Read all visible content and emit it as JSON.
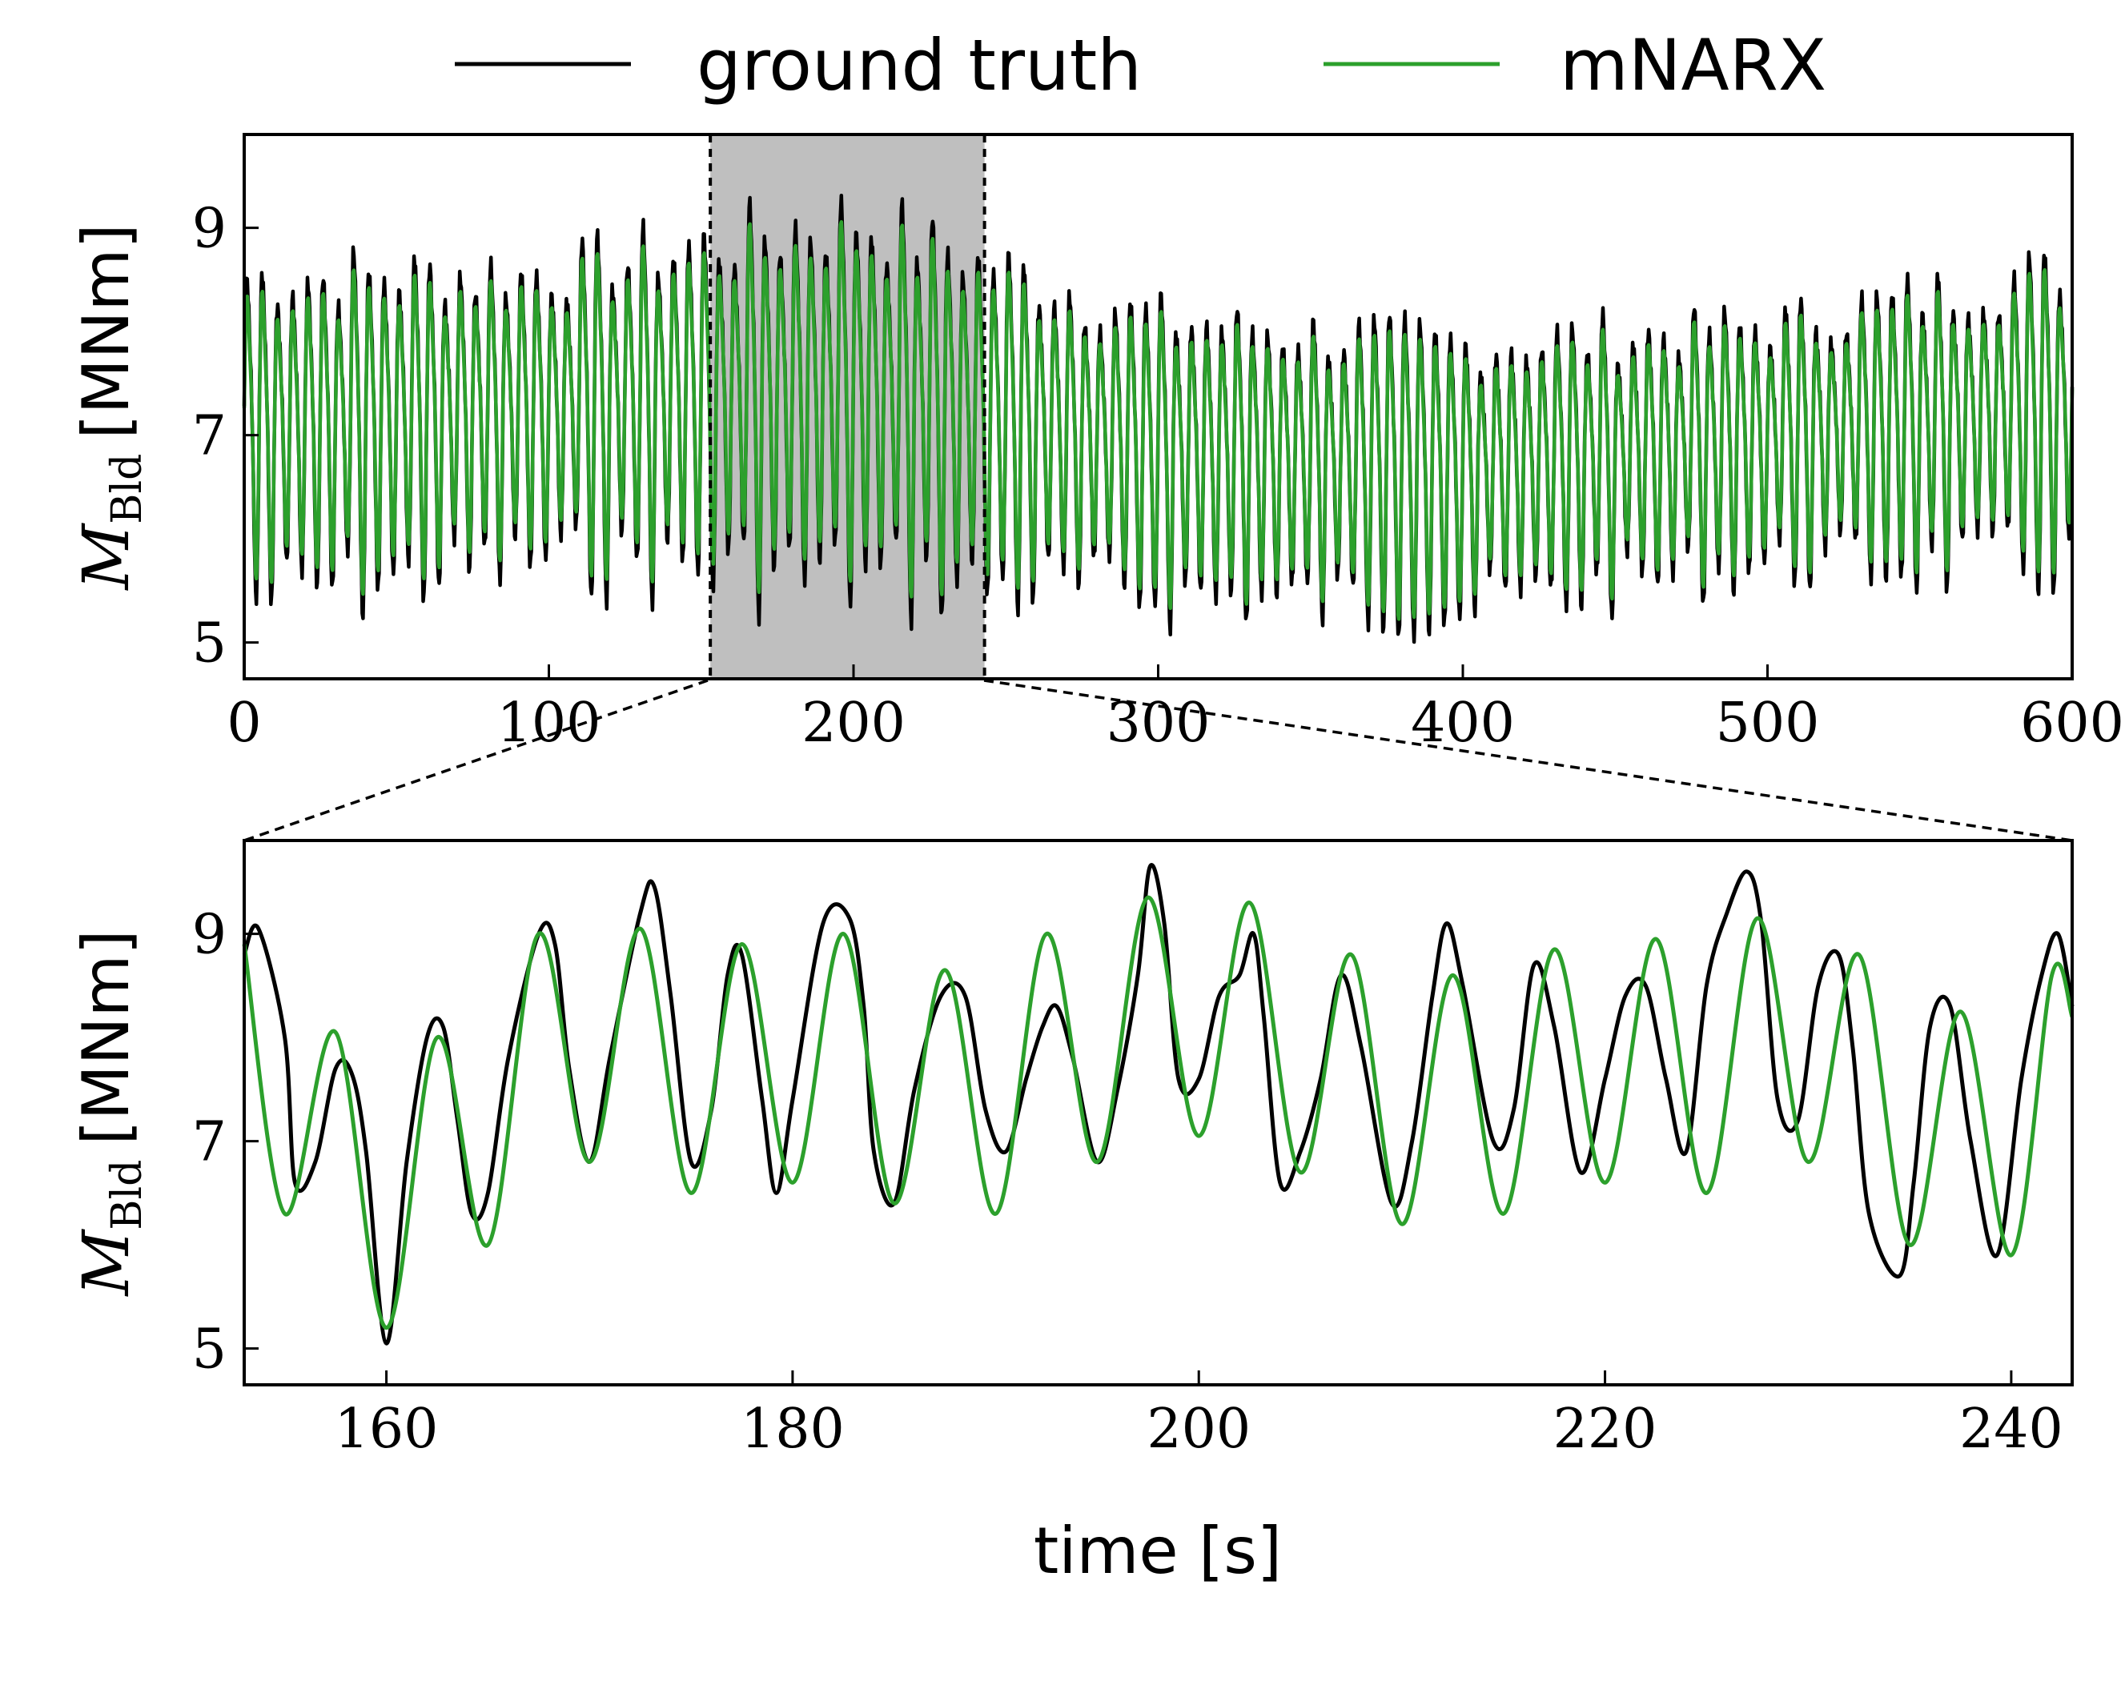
{
  "chart_data": [
    {
      "type": "line",
      "panel": "overview",
      "ylabel": {
        "symbol": "M",
        "subscript": "Bld",
        "unit": "[MNm]"
      },
      "xlabel": "",
      "xlim": [
        0,
        600
      ],
      "ylim": [
        4.65,
        9.9
      ],
      "xticks": [
        0,
        100,
        200,
        300,
        400,
        500,
        600
      ],
      "yticks": [
        5,
        7,
        9
      ],
      "highlight_region": [
        153,
        243
      ],
      "series": [
        {
          "name": "ground truth",
          "color": "#000000"
        },
        {
          "name": "mNARX",
          "color": "#2ca02c"
        }
      ],
      "signal_model": {
        "duration_s": [
          0,
          600
        ],
        "dominant_period_s": 5.0,
        "mean_trend": {
          "t": [
            0,
            100,
            200,
            300,
            400,
            500,
            600
          ],
          "y": [
            7.1,
            7.3,
            7.5,
            6.9,
            6.7,
            7.0,
            7.3
          ]
        },
        "amplitude_trend": {
          "t": [
            0,
            100,
            200,
            300,
            400,
            500,
            600
          ],
          "y": [
            1.3,
            1.15,
            1.45,
            1.1,
            1.05,
            0.95,
            1.2
          ]
        }
      }
    },
    {
      "type": "line",
      "panel": "zoom",
      "ylabel": {
        "symbol": "M",
        "subscript": "Bld",
        "unit": "[MNm]"
      },
      "xlabel": "time [s]",
      "xlim": [
        153,
        243
      ],
      "ylim": [
        4.65,
        9.9
      ],
      "xticks": [
        160,
        180,
        200,
        220,
        240
      ],
      "yticks": [
        5,
        7,
        9
      ],
      "series": [
        {
          "name": "ground truth",
          "color": "#000000",
          "x": [
            153,
            153.7,
            155,
            155.5,
            156.5,
            157.5,
            158.3,
            159,
            160,
            161,
            162,
            162.8,
            163.5,
            164.2,
            165,
            166,
            167.5,
            168.3,
            169,
            170,
            171,
            172.5,
            173.2,
            174,
            175,
            176,
            176.8,
            177.5,
            178.5,
            179.2,
            180,
            181.5,
            182.8,
            183.5,
            184,
            185,
            186,
            187.3,
            188.5,
            189.5,
            190.5,
            191.5,
            192.3,
            193,
            193.8,
            195,
            196,
            197,
            197.6,
            198.3,
            199,
            200,
            201,
            202,
            202.7,
            203.2,
            204,
            205,
            206,
            207,
            208,
            209.5,
            210.5,
            211.5,
            212.2,
            213,
            214.5,
            215.5,
            216.5,
            217.5,
            218.8,
            220,
            221,
            222,
            223,
            224,
            225,
            226,
            227,
            227.7,
            228.5,
            229.5,
            230.5,
            231.5,
            232.2,
            233,
            234.5,
            235.2,
            236,
            237,
            238,
            239.3,
            240.5,
            241.5,
            242.3,
            243
          ],
          "y": [
            8.8,
            9.05,
            8.0,
            6.6,
            6.8,
            7.7,
            7.65,
            6.9,
            5.05,
            6.8,
            8.0,
            8.1,
            7.2,
            6.3,
            6.5,
            7.8,
            9.0,
            8.9,
            7.7,
            6.8,
            7.8,
            9.2,
            9.45,
            8.4,
            6.8,
            7.3,
            8.6,
            8.8,
            7.4,
            6.5,
            7.4,
            9.1,
            9.15,
            8.3,
            6.9,
            6.4,
            7.5,
            8.4,
            8.4,
            7.3,
            6.9,
            7.6,
            8.1,
            8.3,
            7.8,
            6.8,
            7.5,
            8.6,
            9.65,
            9.1,
            7.6,
            7.6,
            8.4,
            8.6,
            9.0,
            8.2,
            6.6,
            6.9,
            7.6,
            8.6,
            7.9,
            6.4,
            7.0,
            8.4,
            9.1,
            8.5,
            7.0,
            7.3,
            8.7,
            8.1,
            6.7,
            7.6,
            8.4,
            8.5,
            7.6,
            6.9,
            8.5,
            9.2,
            9.6,
            9.1,
            7.4,
            7.2,
            8.5,
            8.8,
            7.9,
            6.3,
            5.7,
            6.6,
            8.1,
            8.3,
            7.0,
            5.9,
            7.6,
            8.6,
            9.0,
            8.3
          ]
        },
        {
          "name": "mNARX",
          "color": "#2ca02c",
          "x": [
            153,
            155,
            157.5,
            160,
            162.5,
            165,
            167.5,
            170,
            172.5,
            175,
            177.5,
            180,
            182.5,
            185,
            187.5,
            190,
            192.5,
            195,
            197.5,
            200,
            202.5,
            205,
            207.5,
            210,
            212.5,
            215,
            217.5,
            220,
            222.5,
            225,
            227.5,
            230,
            232.5,
            235,
            237.5,
            240,
            242,
            243
          ],
          "y": [
            8.9,
            6.3,
            8.05,
            5.2,
            8.0,
            6.0,
            9.0,
            6.8,
            9.05,
            6.5,
            8.9,
            6.6,
            9.0,
            6.4,
            8.65,
            6.3,
            9.0,
            6.8,
            9.35,
            7.05,
            9.3,
            6.7,
            8.8,
            6.2,
            8.6,
            6.3,
            8.85,
            6.6,
            8.95,
            6.5,
            9.15,
            6.8,
            8.8,
            6.0,
            8.25,
            5.9,
            8.6,
            8.2
          ]
        }
      ]
    }
  ]
}
